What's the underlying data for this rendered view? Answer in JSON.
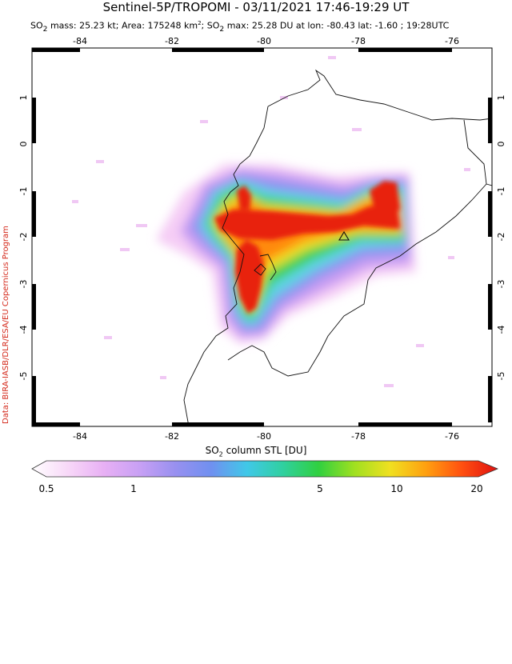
{
  "header": {
    "title": "Sentinel-5P/TROPOMI - 03/11/2021 17:46-19:29 UT",
    "subtitle_pre": "SO",
    "subtitle_sub": "2",
    "subtitle_mid": " mass: 25.23 kt; Area: 175248 km",
    "subtitle_sup": "2",
    "subtitle_mid2": "; SO",
    "subtitle_sub2": "2",
    "subtitle_post": " max: 25.28 DU at lon: -80.43 lat: -1.60 ; 19:28UTC"
  },
  "credit": "Data: BIRA-IASB/DLR/ESA/EU Copernicus Program",
  "map": {
    "lon_ticks": [
      "-84",
      "-82",
      "-80",
      "-78",
      "-76"
    ],
    "lat_ticks": [
      "1",
      "0",
      "-1",
      "-2",
      "-3",
      "-4",
      "-5"
    ],
    "volcano_marker": "triangle",
    "colors": {
      "red": "#e8200f",
      "orange": "#ff8a10",
      "yellow": "#f0e020",
      "green": "#38d050",
      "cyan": "#60d8e0",
      "blue": "#8898f0",
      "violet": "#c090f0",
      "pink": "#f4c0f0"
    }
  },
  "colorbar": {
    "label_pre": "SO",
    "label_sub": "2",
    "label_post": " column STL [DU]",
    "ticks": [
      "0.5",
      "1",
      "5",
      "10",
      "20"
    ],
    "colors": [
      "#ffffff",
      "#f8d8f8",
      "#e8b0f4",
      "#c8a0f4",
      "#9890f0",
      "#7090f0",
      "#40c8e8",
      "#30d0a0",
      "#30d040",
      "#a0e020",
      "#f0e020",
      "#ffa010",
      "#ff5010",
      "#e01010"
    ]
  }
}
